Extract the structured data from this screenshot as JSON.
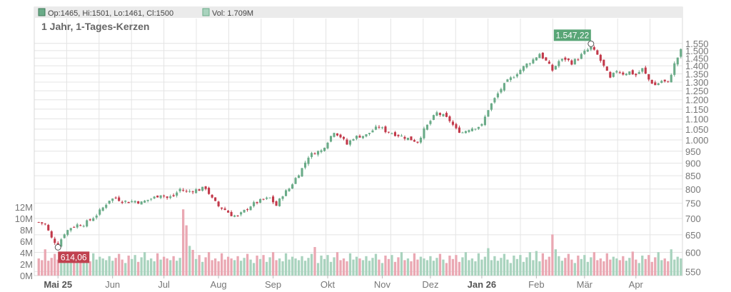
{
  "legend": {
    "ohlc_label": "Op:1465, Hi:1501, Lo:1461, Cl:1500",
    "volume_label": "Vol: 1.709M"
  },
  "title": "1 Jahr, 1-Tages-Kerzen",
  "colors": {
    "up": "#6aab88",
    "down": "#c2394a",
    "vol_up": "#a9d3be",
    "vol_down": "#eaa8b3",
    "grid": "#e4e4e4",
    "legend_bg": "#ebebeb",
    "high_badge": "#58a576",
    "low_badge": "#c0414f"
  },
  "chart_data": {
    "type": "candlestick",
    "price_axis": {
      "scale": "log",
      "ylim": [
        540,
        1600
      ],
      "ticks": [
        550,
        600,
        650,
        700,
        750,
        800,
        850,
        900,
        950,
        1000,
        1050,
        1100,
        1150,
        1200,
        1250,
        1300,
        1350,
        1400,
        1450,
        1500,
        1550
      ],
      "tick_labels": [
        "550",
        "600",
        "650",
        "700",
        "750",
        "800",
        "850",
        "900",
        "950",
        "1.000",
        "1.050",
        "1.100",
        "1.150",
        "1.200",
        "1.250",
        "1.300",
        "1.350",
        "1.400",
        "1.450",
        "1.500",
        "1.550"
      ]
    },
    "volume_axis": {
      "ylim": [
        0,
        14
      ],
      "ticks": [
        0,
        2,
        4,
        6,
        8,
        10,
        12
      ],
      "tick_labels": [
        "0M",
        "2M",
        "4M",
        "6M",
        "8M",
        "10M",
        "12M"
      ]
    },
    "x_axis": {
      "labels": [
        {
          "label": "Mai 25",
          "bold": true
        },
        {
          "label": "Jun",
          "bold": false
        },
        {
          "label": "Jul",
          "bold": false
        },
        {
          "label": "Aug",
          "bold": false
        },
        {
          "label": "Sep",
          "bold": false
        },
        {
          "label": "Okt",
          "bold": false
        },
        {
          "label": "Nov",
          "bold": false
        },
        {
          "label": "Dez",
          "bold": false
        },
        {
          "label": "Jan 26",
          "bold": true
        },
        {
          "label": "Feb",
          "bold": false
        },
        {
          "label": "Mär",
          "bold": false
        },
        {
          "label": "Apr",
          "bold": false
        }
      ]
    },
    "annotations": {
      "high": {
        "label": "1.547,22",
        "value": 1547.22
      },
      "low": {
        "label": "614,06",
        "value": 614.06
      }
    },
    "price_anchors": [
      [
        0,
        688
      ],
      [
        2,
        682
      ],
      [
        4,
        640
      ],
      [
        6,
        620
      ],
      [
        8,
        655
      ],
      [
        10,
        672
      ],
      [
        12,
        680
      ],
      [
        14,
        682
      ],
      [
        16,
        695
      ],
      [
        18,
        712
      ],
      [
        20,
        735
      ],
      [
        22,
        762
      ],
      [
        24,
        768
      ],
      [
        26,
        758
      ],
      [
        28,
        755
      ],
      [
        30,
        758
      ],
      [
        32,
        752
      ],
      [
        34,
        762
      ],
      [
        36,
        770
      ],
      [
        38,
        782
      ],
      [
        40,
        768
      ],
      [
        42,
        775
      ],
      [
        44,
        800
      ],
      [
        46,
        790
      ],
      [
        48,
        795
      ],
      [
        50,
        798
      ],
      [
        52,
        805
      ],
      [
        54,
        765
      ],
      [
        56,
        740
      ],
      [
        58,
        728
      ],
      [
        60,
        712
      ],
      [
        62,
        706
      ],
      [
        64,
        724
      ],
      [
        66,
        742
      ],
      [
        68,
        754
      ],
      [
        70,
        762
      ],
      [
        72,
        768
      ],
      [
        74,
        742
      ],
      [
        76,
        780
      ],
      [
        78,
        802
      ],
      [
        80,
        840
      ],
      [
        82,
        878
      ],
      [
        84,
        928
      ],
      [
        86,
        945
      ],
      [
        88,
        952
      ],
      [
        90,
        995
      ],
      [
        92,
        1040
      ],
      [
        94,
        1015
      ],
      [
        96,
        980
      ],
      [
        98,
        1010
      ],
      [
        100,
        1018
      ],
      [
        102,
        1022
      ],
      [
        104,
        1045
      ],
      [
        106,
        1062
      ],
      [
        108,
        1042
      ],
      [
        110,
        1032
      ],
      [
        112,
        1022
      ],
      [
        114,
        1012
      ],
      [
        116,
        1002
      ],
      [
        118,
        992
      ],
      [
        120,
        1045
      ],
      [
        122,
        1090
      ],
      [
        124,
        1130
      ],
      [
        126,
        1115
      ],
      [
        128,
        1092
      ],
      [
        130,
        1048
      ],
      [
        132,
        1035
      ],
      [
        134,
        1052
      ],
      [
        136,
        1060
      ],
      [
        138,
        1068
      ],
      [
        140,
        1150
      ],
      [
        142,
        1205
      ],
      [
        144,
        1262
      ],
      [
        146,
        1305
      ],
      [
        148,
        1338
      ],
      [
        150,
        1375
      ],
      [
        152,
        1410
      ],
      [
        154,
        1440
      ],
      [
        156,
        1480
      ],
      [
        158,
        1430
      ],
      [
        160,
        1372
      ],
      [
        162,
        1430
      ],
      [
        164,
        1445
      ],
      [
        166,
        1420
      ],
      [
        168,
        1450
      ],
      [
        170,
        1490
      ],
      [
        172,
        1520
      ],
      [
        174,
        1470
      ],
      [
        176,
        1395
      ],
      [
        178,
        1320
      ],
      [
        180,
        1372
      ],
      [
        182,
        1352
      ],
      [
        184,
        1362
      ],
      [
        186,
        1342
      ],
      [
        188,
        1380
      ],
      [
        190,
        1315
      ],
      [
        192,
        1282
      ],
      [
        194,
        1308
      ],
      [
        196,
        1295
      ],
      [
        198,
        1410
      ],
      [
        200,
        1500
      ]
    ],
    "volume_pattern": [
      3,
      2.7,
      3.4,
      2.6,
      3.1,
      3.8,
      2.8,
      2.2,
      3.5,
      2.9,
      3.6,
      2.4,
      3.2,
      4.1,
      2.7,
      3.0,
      2.5,
      3.9,
      2.8,
      3.3
    ],
    "volume_spikes": [
      [
        2,
        4.6
      ],
      [
        45,
        11.6
      ],
      [
        46,
        8.8
      ],
      [
        47,
        5.2
      ],
      [
        48,
        4.5
      ],
      [
        86,
        5.0
      ],
      [
        140,
        4.8
      ],
      [
        155,
        4.3
      ],
      [
        160,
        7.2
      ],
      [
        161,
        4.6
      ],
      [
        185,
        4.2
      ],
      [
        197,
        4.6
      ]
    ]
  }
}
